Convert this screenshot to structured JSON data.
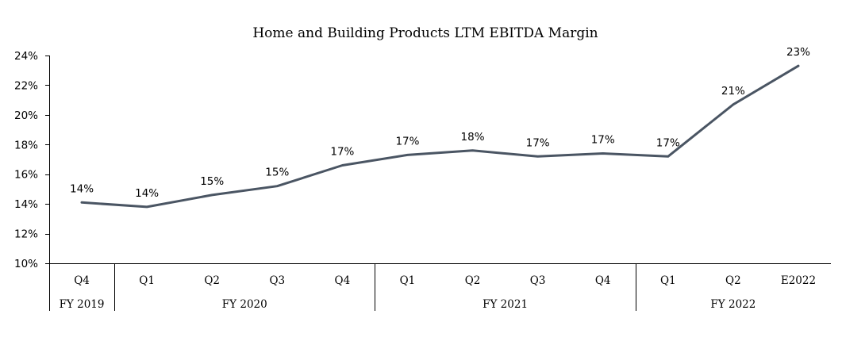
{
  "chart_data": {
    "type": "line",
    "title": "Home and Building Products LTM EBITDA Margin",
    "xlabel": "",
    "ylabel": "",
    "ylim": [
      10,
      24
    ],
    "yticks": [
      10,
      12,
      14,
      16,
      18,
      20,
      22,
      24
    ],
    "ytick_labels": [
      "10%",
      "12%",
      "14%",
      "16%",
      "18%",
      "20%",
      "22%",
      "24%"
    ],
    "grid": false,
    "legend": "none",
    "categories": [
      "Q4",
      "Q1",
      "Q2",
      "Q3",
      "Q4",
      "Q1",
      "Q2",
      "Q3",
      "Q4",
      "Q1",
      "Q2",
      "E2022"
    ],
    "groups": [
      {
        "label": "FY 2019",
        "span": 1
      },
      {
        "label": "FY 2020",
        "span": 4
      },
      {
        "label": "FY 2021",
        "span": 4
      },
      {
        "label": "FY 2022",
        "span": 3
      }
    ],
    "series": [
      {
        "color": "#4a5563",
        "values": [
          14.1,
          13.8,
          14.6,
          15.2,
          16.6,
          17.3,
          17.6,
          17.2,
          17.4,
          17.2,
          20.7,
          23.3
        ],
        "labels": [
          "14%",
          "14%",
          "15%",
          "15%",
          "17%",
          "17%",
          "18%",
          "17%",
          "17%",
          "17%",
          "21%",
          "23%"
        ]
      }
    ]
  }
}
